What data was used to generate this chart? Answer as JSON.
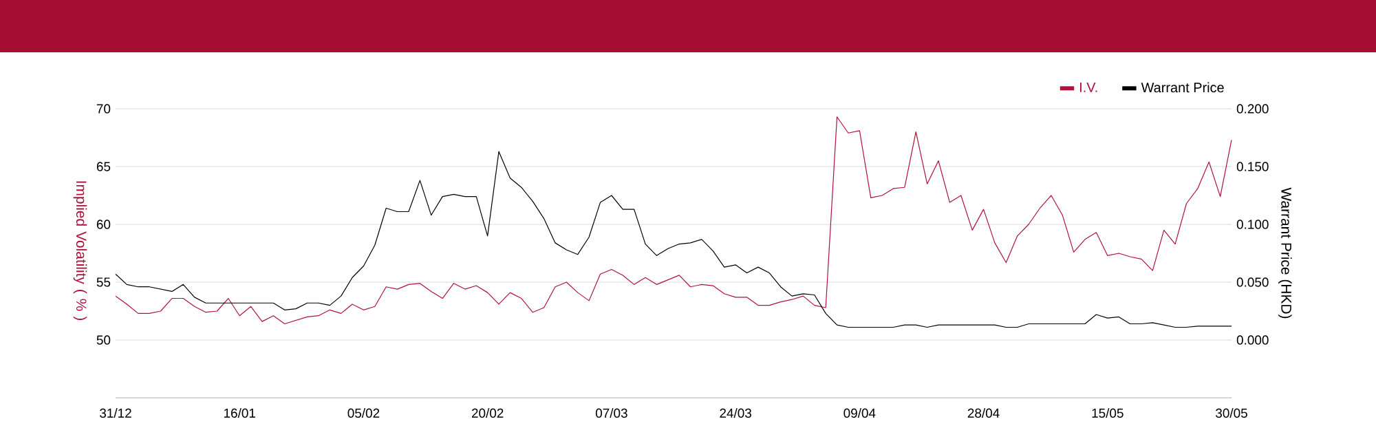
{
  "chart_data": {
    "type": "line",
    "categories": [
      "31/12",
      null,
      null,
      null,
      null,
      null,
      null,
      null,
      null,
      null,
      null,
      "16/01",
      null,
      null,
      null,
      null,
      null,
      null,
      null,
      null,
      null,
      null,
      "05/02",
      null,
      null,
      null,
      null,
      null,
      null,
      null,
      null,
      null,
      null,
      "20/02",
      null,
      null,
      null,
      null,
      null,
      null,
      null,
      null,
      null,
      null,
      "07/03",
      null,
      null,
      null,
      null,
      null,
      null,
      null,
      null,
      null,
      null,
      "24/03",
      null,
      null,
      null,
      null,
      null,
      null,
      null,
      null,
      null,
      null,
      "09/04",
      null,
      null,
      null,
      null,
      null,
      null,
      null,
      null,
      null,
      null,
      "28/04",
      null,
      null,
      null,
      null,
      null,
      null,
      null,
      null,
      null,
      null,
      "15/05",
      null,
      null,
      null,
      null,
      null,
      null,
      null,
      null,
      null,
      null,
      "30/05"
    ],
    "series": [
      {
        "name": "I.V.",
        "color": "#b0103a",
        "values": [
          53.8,
          53.1,
          52.3,
          52.3,
          52.5,
          53.6,
          53.6,
          52.9,
          52.4,
          52.5,
          53.6,
          52.1,
          52.9,
          51.6,
          52.1,
          51.4,
          51.7,
          52.0,
          52.1,
          52.6,
          52.3,
          53.1,
          52.6,
          52.9,
          54.6,
          54.4,
          54.8,
          54.9,
          54.2,
          53.6,
          54.9,
          54.4,
          54.7,
          54.1,
          53.1,
          54.1,
          53.6,
          52.4,
          52.8,
          54.6,
          55.0,
          54.1,
          53.4,
          55.7,
          56.1,
          55.6,
          54.8,
          55.4,
          54.8,
          55.2,
          55.6,
          54.6,
          54.8,
          54.7,
          54.0,
          53.7,
          53.7,
          53.0,
          53.0,
          53.3,
          53.5,
          53.8,
          53.0,
          52.8,
          69.3,
          67.9,
          68.1,
          62.3,
          62.5,
          63.1,
          63.2,
          68.0,
          63.5,
          65.5,
          61.9,
          62.5,
          59.5,
          61.3,
          58.4,
          56.7,
          59.0,
          60.0,
          61.4,
          62.5,
          60.8,
          57.6,
          58.7,
          59.3,
          57.3,
          57.5,
          57.2,
          57.0,
          56.0,
          59.5,
          58.3,
          61.8,
          63.1,
          65.4,
          62.4,
          67.3
        ]
      },
      {
        "name": "Warrant Price",
        "color": "#000000",
        "axis": "y2",
        "values": [
          0.057,
          0.048,
          0.046,
          0.046,
          0.044,
          0.042,
          0.048,
          0.037,
          0.032,
          0.032,
          0.032,
          0.032,
          0.032,
          0.032,
          0.032,
          0.026,
          0.027,
          0.032,
          0.032,
          0.03,
          0.038,
          0.054,
          0.064,
          0.082,
          0.114,
          0.111,
          0.111,
          0.138,
          0.108,
          0.124,
          0.126,
          0.124,
          0.124,
          0.09,
          0.163,
          0.14,
          0.132,
          0.12,
          0.105,
          0.084,
          0.078,
          0.074,
          0.089,
          0.119,
          0.125,
          0.113,
          0.113,
          0.083,
          0.073,
          0.079,
          0.083,
          0.084,
          0.087,
          0.077,
          0.063,
          0.065,
          0.058,
          0.063,
          0.058,
          0.046,
          0.038,
          0.04,
          0.039,
          0.023,
          0.013,
          0.011,
          0.011,
          0.011,
          0.011,
          0.011,
          0.013,
          0.013,
          0.011,
          0.013,
          0.013,
          0.013,
          0.013,
          0.013,
          0.013,
          0.011,
          0.011,
          0.014,
          0.014,
          0.014,
          0.014,
          0.014,
          0.014,
          0.022,
          0.019,
          0.02,
          0.014,
          0.014,
          0.015,
          0.013,
          0.011,
          0.011,
          0.012,
          0.012,
          0.012,
          0.012
        ]
      }
    ],
    "ylabel": "Implied Volatility ( % )",
    "y2label": "Warrant Price (HKD)",
    "ylim": [
      45,
      70
    ],
    "yticks": [
      50,
      55,
      60,
      65,
      70
    ],
    "y2lim": [
      -0.05,
      0.2
    ],
    "y2ticks": [
      {
        "value": 0,
        "label": "0.000"
      },
      {
        "value": 0.05,
        "label": "0.050"
      },
      {
        "value": 0.1,
        "label": "0.100"
      },
      {
        "value": 0.15,
        "label": "0.150"
      },
      {
        "value": 0.2,
        "label": "0.200"
      }
    ],
    "grid": "y",
    "legend": "top right"
  }
}
